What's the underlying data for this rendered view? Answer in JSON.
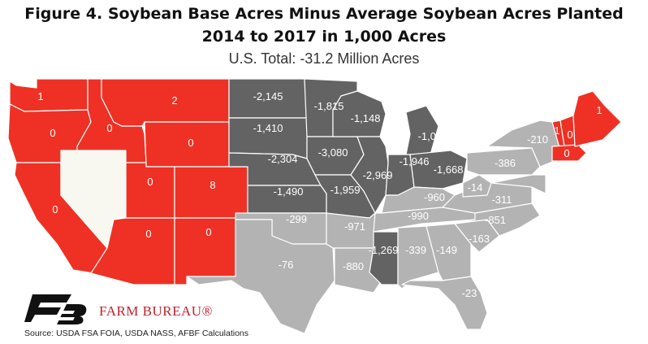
{
  "title_line1": "Figure 4. Soybean Base Acres Minus Average Soybean Acres Planted",
  "title_line2": "2014 to 2017 in 1,000 Acres",
  "subtitle": "U.S. Total: -31.2 Million Acres",
  "organization": "FARM BUREAU®",
  "source": "Source: USDA FSA FOIA, USDA NASS, AFBF Calculations",
  "colors": {
    "positive": "#ee3124",
    "zero_data": "#f8f8f0",
    "large_negative": "#636363",
    "small_negative": "#b3b3b3",
    "border": "#ffffff",
    "brand": "#c0202a"
  },
  "map_data": {
    "states": [
      {
        "state": "WA",
        "value": 1,
        "label": "1",
        "category": "positive"
      },
      {
        "state": "OR",
        "value": 0,
        "label": "0",
        "category": "positive"
      },
      {
        "state": "CA",
        "value": 0,
        "label": "0",
        "category": "positive"
      },
      {
        "state": "ID",
        "value": 0,
        "label": "0",
        "category": "positive"
      },
      {
        "state": "NV",
        "value": null,
        "label": "",
        "category": "zero_data"
      },
      {
        "state": "MT",
        "value": 2,
        "label": "2",
        "category": "positive"
      },
      {
        "state": "WY",
        "value": 0,
        "label": "0",
        "category": "positive"
      },
      {
        "state": "UT",
        "value": 0,
        "label": "0",
        "category": "positive"
      },
      {
        "state": "CO",
        "value": 8,
        "label": "8",
        "category": "positive"
      },
      {
        "state": "AZ",
        "value": 0,
        "label": "0",
        "category": "positive"
      },
      {
        "state": "NM",
        "value": 0,
        "label": "0",
        "category": "positive"
      },
      {
        "state": "ND",
        "value": -2145,
        "label": "-2,145",
        "category": "large_negative"
      },
      {
        "state": "SD",
        "value": -1410,
        "label": "-1,410",
        "category": "large_negative"
      },
      {
        "state": "NE",
        "value": -2304,
        "label": "-2,304",
        "category": "large_negative"
      },
      {
        "state": "KS",
        "value": -1490,
        "label": "-1,490",
        "category": "large_negative"
      },
      {
        "state": "MN",
        "value": -1815,
        "label": "-1,815",
        "category": "large_negative"
      },
      {
        "state": "IA",
        "value": -3080,
        "label": "-3,080",
        "category": "large_negative"
      },
      {
        "state": "MO",
        "value": -1959,
        "label": "-1,959",
        "category": "large_negative"
      },
      {
        "state": "WI",
        "value": -1148,
        "label": "-1,148",
        "category": "large_negative"
      },
      {
        "state": "IL",
        "value": -2969,
        "label": "-2,969",
        "category": "large_negative"
      },
      {
        "state": "MI",
        "value": -1047,
        "label": "-1,047",
        "category": "large_negative"
      },
      {
        "state": "IN",
        "value": -1946,
        "label": "-1,946",
        "category": "large_negative"
      },
      {
        "state": "OH",
        "value": -1668,
        "label": "-1,668",
        "category": "large_negative"
      },
      {
        "state": "MS",
        "value": -1269,
        "label": "-1,269",
        "category": "large_negative"
      },
      {
        "state": "OK",
        "value": -299,
        "label": "-299",
        "category": "small_negative"
      },
      {
        "state": "TX",
        "value": -76,
        "label": "-76",
        "category": "small_negative"
      },
      {
        "state": "AR",
        "value": -971,
        "label": "-971",
        "category": "small_negative"
      },
      {
        "state": "LA",
        "value": -880,
        "label": "-880",
        "category": "small_negative"
      },
      {
        "state": "KY",
        "value": -960,
        "label": "-960",
        "category": "small_negative"
      },
      {
        "state": "TN",
        "value": -990,
        "label": "-990",
        "category": "small_negative"
      },
      {
        "state": "AL",
        "value": -339,
        "label": "-339",
        "category": "small_negative"
      },
      {
        "state": "GA",
        "value": -149,
        "label": "-149",
        "category": "small_negative"
      },
      {
        "state": "FL",
        "value": -23,
        "label": "-23",
        "category": "small_negative"
      },
      {
        "state": "SC",
        "value": -163,
        "label": "-163",
        "category": "small_negative"
      },
      {
        "state": "NC",
        "value": -851,
        "label": "-851",
        "category": "small_negative"
      },
      {
        "state": "VA",
        "value": -311,
        "label": "-311",
        "category": "small_negative"
      },
      {
        "state": "WV",
        "value": -14,
        "label": "-14",
        "category": "small_negative"
      },
      {
        "state": "PA",
        "value": -386,
        "label": "-386",
        "category": "small_negative"
      },
      {
        "state": "NY",
        "value": -210,
        "label": "-210",
        "category": "small_negative"
      },
      {
        "state": "MD-DE",
        "value": null,
        "label": "",
        "category": "small_negative"
      },
      {
        "state": "ME",
        "value": 1,
        "label": "1",
        "category": "positive"
      },
      {
        "state": "VT",
        "value": 1,
        "label": "1",
        "category": "positive"
      },
      {
        "state": "NH",
        "value": 0,
        "label": "0",
        "category": "positive"
      },
      {
        "state": "MA-CT-RI",
        "value": 0,
        "label": "0",
        "category": "positive"
      }
    ]
  }
}
